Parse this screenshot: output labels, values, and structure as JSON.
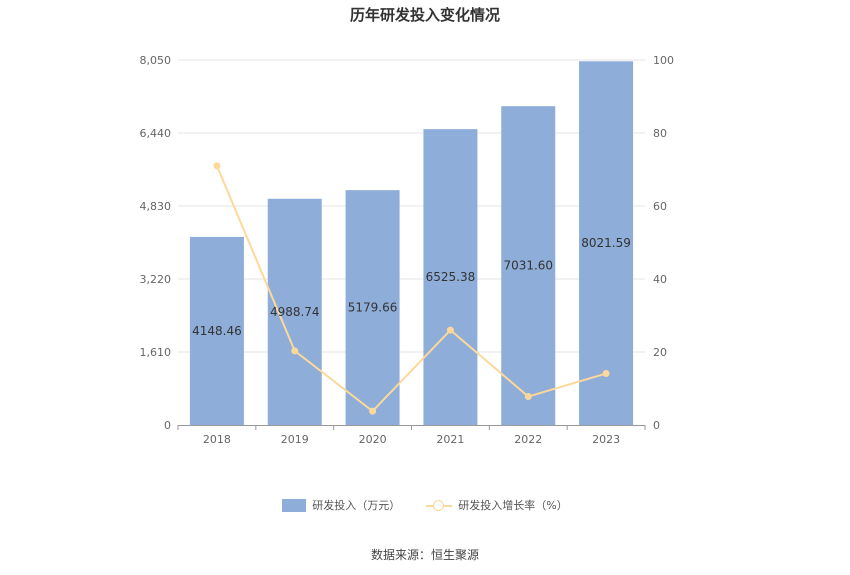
{
  "chart_data": {
    "type": "bar",
    "title": "历年研发投入变化情况",
    "categories": [
      "2018",
      "2019",
      "2020",
      "2021",
      "2022",
      "2023"
    ],
    "series": [
      {
        "name": "研发投入（万元）",
        "type": "bar",
        "axis": "left",
        "values": [
          4148.46,
          4988.74,
          5179.66,
          6525.38,
          7031.6,
          8021.59
        ],
        "labels": [
          "4148.46",
          "4988.74",
          "5179.66",
          "6525.38",
          "7031.60",
          "8021.59"
        ]
      },
      {
        "name": "研发投入增长率（%）",
        "type": "line",
        "axis": "right",
        "values": [
          71,
          20.3,
          3.8,
          26,
          7.8,
          14.1
        ]
      }
    ],
    "y_left": {
      "min": 0,
      "max": 8050,
      "ticks": [
        "0",
        "1,610",
        "3,220",
        "4,830",
        "6,440",
        "8,050"
      ]
    },
    "y_right": {
      "min": 0,
      "max": 100,
      "ticks": [
        "0",
        "20",
        "40",
        "60",
        "80",
        "100"
      ]
    },
    "grid": true,
    "legend_position": "bottom"
  },
  "legend": {
    "bar_label": "研发投入（万元）",
    "line_label": "研发投入增长率（%）"
  },
  "source": "数据来源：恒生聚源",
  "colors": {
    "bar": "#8eadd9",
    "line": "#fcd89a"
  }
}
